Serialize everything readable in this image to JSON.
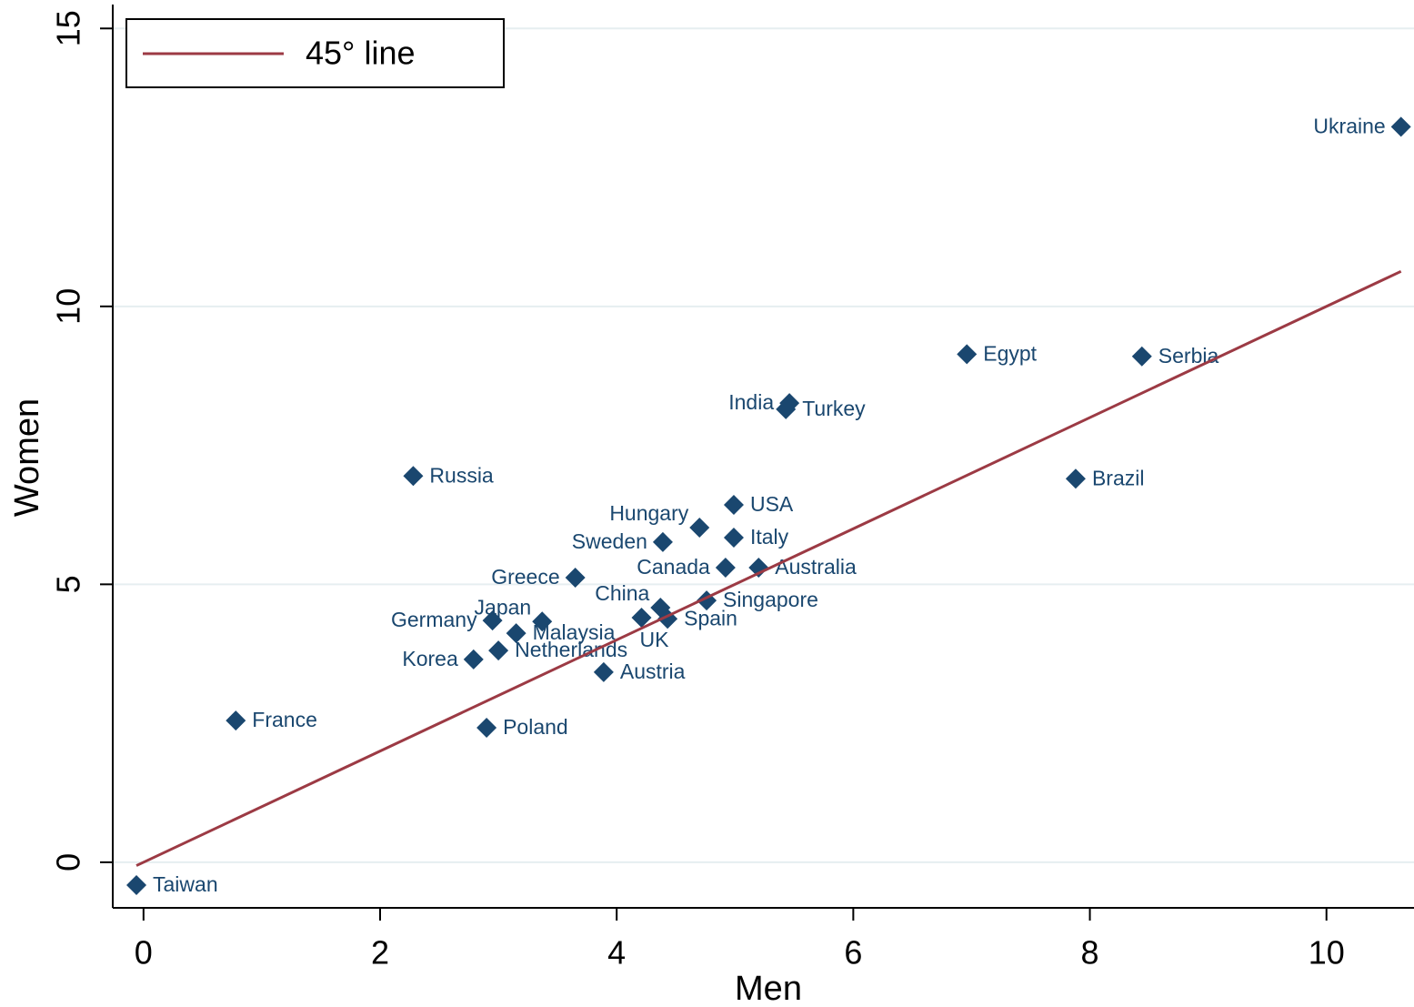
{
  "chart_data": {
    "type": "scatter",
    "x_label": "Men",
    "y_label": "Women",
    "xlim": [
      -0.26,
      10.74
    ],
    "ylim": [
      -0.82,
      15.43
    ],
    "xticks": [
      0,
      2,
      4,
      6,
      8,
      10
    ],
    "yticks": [
      0,
      5,
      10,
      15
    ],
    "grid": true,
    "legend_position": "upper left",
    "series": [
      {
        "type": "scatter",
        "color": "#1a476f",
        "labels": [
          "Taiwan",
          "France",
          "Russia",
          "Poland",
          "Korea",
          "Netherlands",
          "Germany",
          "Malaysia",
          "Japan",
          "Greece",
          "Austria",
          "UK",
          "China",
          "Spain",
          "Sweden",
          "Hungary",
          "Singapore",
          "Canada",
          "Italy",
          "USA",
          "Australia",
          "India",
          "Turkey",
          "Egypt",
          "Brazil",
          "Serbia",
          "Ukraine"
        ],
        "x": [
          -0.06,
          0.78,
          2.28,
          2.9,
          2.79,
          3.0,
          2.95,
          3.15,
          3.37,
          3.65,
          3.89,
          4.21,
          4.37,
          4.43,
          4.39,
          4.7,
          4.76,
          4.92,
          4.99,
          4.99,
          5.2,
          5.46,
          5.43,
          6.96,
          7.88,
          8.44,
          10.63
        ],
        "values": [
          -0.41,
          2.55,
          6.95,
          2.42,
          3.65,
          3.81,
          4.35,
          4.12,
          4.33,
          5.12,
          3.42,
          4.4,
          4.58,
          4.38,
          5.76,
          6.02,
          4.71,
          5.3,
          5.84,
          6.43,
          5.3,
          8.26,
          8.15,
          9.14,
          6.9,
          9.1,
          13.23
        ]
      },
      {
        "type": "line",
        "name": "45° line",
        "color": "#9c3a44",
        "x": [
          -0.06,
          10.63
        ],
        "values": [
          -0.06,
          10.63
        ]
      }
    ]
  }
}
